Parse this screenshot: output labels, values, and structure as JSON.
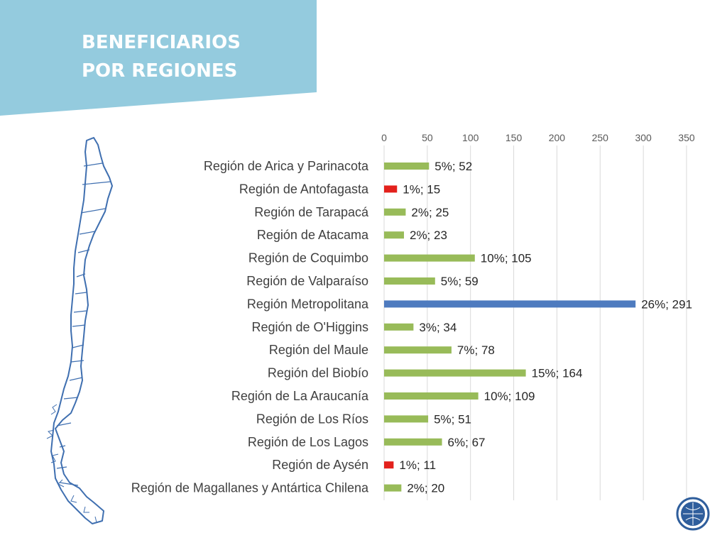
{
  "title": {
    "line1": "BENEFICIARIOS",
    "line2": "POR REGIONES"
  },
  "colors": {
    "banner": "#94cbde",
    "highlight": "#4e7bbf",
    "default": "#98bb59",
    "low": "#e3211c",
    "map_outline": "#3f6fb0",
    "badge": "#2f5e9c"
  },
  "chart_data": {
    "type": "bar",
    "orientation": "horizontal",
    "categories": [
      "Región de Arica y Parinacota",
      "Región de Antofagasta",
      "Región de Tarapacá",
      "Región de Atacama",
      "Región de Coquimbo",
      "Región de Valparaíso",
      "Región Metropolitana",
      "Región de O'Higgins",
      "Región del Maule",
      "Región del Biobío",
      "Región de La Araucanía",
      "Región de Los Ríos",
      "Región de Los Lagos",
      "Región de Aysén",
      "Región de Magallanes y Antártica Chilena"
    ],
    "values": [
      52,
      15,
      25,
      23,
      105,
      59,
      291,
      34,
      78,
      164,
      109,
      51,
      67,
      11,
      20
    ],
    "percentages": [
      "5%",
      "1%",
      "2%",
      "2%",
      "10%",
      "5%",
      "26%",
      "3%",
      "7%",
      "15%",
      "10%",
      "5%",
      "6%",
      "1%",
      "2%"
    ],
    "data_labels": [
      "5%; 52",
      "1%; 15",
      "2%; 25",
      "2%; 23",
      "10%; 105",
      "5%; 59",
      "26%; 291",
      "3%; 34",
      "7%; 78",
      "15%; 164",
      "10%; 109",
      "5%; 51",
      "6%; 67",
      "1%; 11",
      "2%; 20"
    ],
    "bar_colors": [
      "#98bb59",
      "#e3211c",
      "#98bb59",
      "#98bb59",
      "#98bb59",
      "#98bb59",
      "#4e7bbf",
      "#98bb59",
      "#98bb59",
      "#98bb59",
      "#98bb59",
      "#98bb59",
      "#98bb59",
      "#e3211c",
      "#98bb59"
    ],
    "xlim": [
      0,
      350
    ],
    "xticks": [
      0,
      50,
      100,
      150,
      200,
      250,
      300,
      350
    ],
    "axis_position": "top",
    "grid": true,
    "legend": false
  }
}
